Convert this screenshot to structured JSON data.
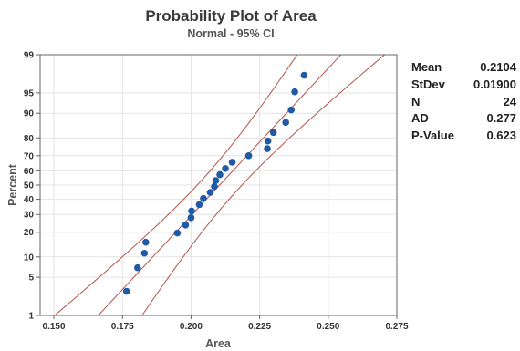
{
  "chart_data": {
    "type": "scatter",
    "title": "Probability Plot of Area",
    "subtitle": "Normal - 95% CI",
    "xlabel": "Area",
    "ylabel": "Percent",
    "xlim": [
      0.145,
      0.275
    ],
    "ylim": [
      1,
      99
    ],
    "y_scale": "normal-probability",
    "grid": true,
    "x_ticks": [
      {
        "value": 0.15,
        "label": "0.150"
      },
      {
        "value": 0.175,
        "label": "0.175"
      },
      {
        "value": 0.2,
        "label": "0.200"
      },
      {
        "value": 0.225,
        "label": "0.225"
      },
      {
        "value": 0.25,
        "label": "0.250"
      },
      {
        "value": 0.275,
        "label": "0.275"
      }
    ],
    "y_ticks": [
      {
        "value": 1,
        "label": "1"
      },
      {
        "value": 5,
        "label": "5"
      },
      {
        "value": 10,
        "label": "10"
      },
      {
        "value": 20,
        "label": "20"
      },
      {
        "value": 30,
        "label": "30"
      },
      {
        "value": 40,
        "label": "40"
      },
      {
        "value": 50,
        "label": "50"
      },
      {
        "value": 60,
        "label": "60"
      },
      {
        "value": 70,
        "label": "70"
      },
      {
        "value": 80,
        "label": "80"
      },
      {
        "value": 90,
        "label": "90"
      },
      {
        "value": 95,
        "label": "95"
      },
      {
        "value": 99,
        "label": "99"
      }
    ],
    "fit": {
      "mean": 0.2104,
      "stdev": 0.019
    },
    "ci_z": 2.1,
    "colors": {
      "points": "#1f5aa6",
      "fit_line": "#b5524a",
      "grid": "#e4e4e4",
      "frame": "#666666"
    },
    "points": [
      {
        "x": 0.1765,
        "y": 2.9
      },
      {
        "x": 0.1805,
        "y": 7.0
      },
      {
        "x": 0.183,
        "y": 11.2
      },
      {
        "x": 0.1835,
        "y": 15.4
      },
      {
        "x": 0.195,
        "y": 19.6
      },
      {
        "x": 0.198,
        "y": 23.8
      },
      {
        "x": 0.2,
        "y": 28.0
      },
      {
        "x": 0.2002,
        "y": 32.2
      },
      {
        "x": 0.203,
        "y": 36.4
      },
      {
        "x": 0.2045,
        "y": 40.6
      },
      {
        "x": 0.207,
        "y": 44.8
      },
      {
        "x": 0.2085,
        "y": 49.0
      },
      {
        "x": 0.209,
        "y": 53.2
      },
      {
        "x": 0.2105,
        "y": 57.4
      },
      {
        "x": 0.2125,
        "y": 61.6
      },
      {
        "x": 0.215,
        "y": 65.8
      },
      {
        "x": 0.221,
        "y": 70.0
      },
      {
        "x": 0.2278,
        "y": 74.2
      },
      {
        "x": 0.228,
        "y": 78.4
      },
      {
        "x": 0.23,
        "y": 82.6
      },
      {
        "x": 0.2345,
        "y": 86.8
      },
      {
        "x": 0.2365,
        "y": 91.0
      },
      {
        "x": 0.2378,
        "y": 95.2
      },
      {
        "x": 0.2412,
        "y": 97.5
      }
    ]
  },
  "stats": [
    {
      "label": "Mean",
      "value": "0.2104"
    },
    {
      "label": "StDev",
      "value": "0.01900"
    },
    {
      "label": "N",
      "value": "24"
    },
    {
      "label": "AD",
      "value": "0.277"
    },
    {
      "label": "P-Value",
      "value": "0.623"
    }
  ]
}
